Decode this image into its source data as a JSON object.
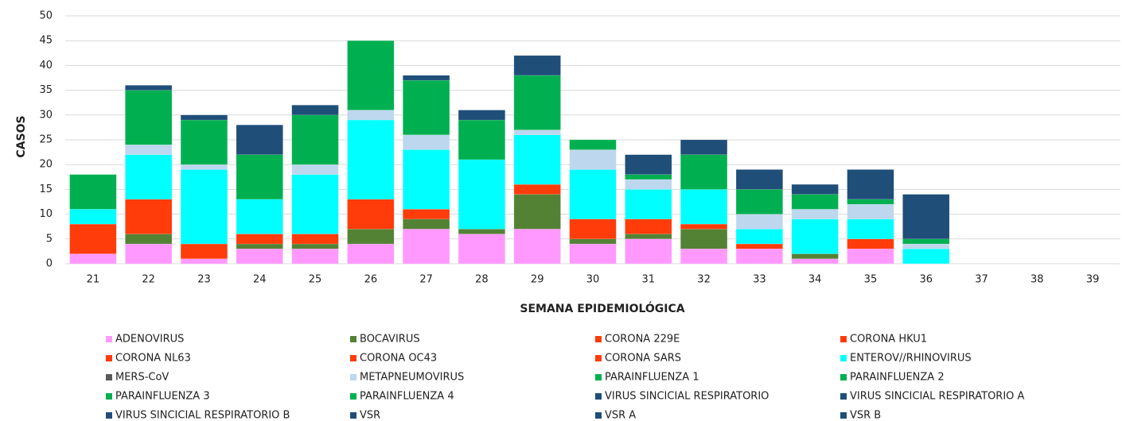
{
  "chart_data": {
    "type": "stacked-bar",
    "x_label": "SEMANA EPIDEMIOLÓGICA",
    "y_label": "CASOS",
    "categories": [
      "21",
      "22",
      "23",
      "24",
      "25",
      "26",
      "27",
      "28",
      "29",
      "30",
      "31",
      "32",
      "33",
      "34",
      "35",
      "36",
      "37",
      "38",
      "39"
    ],
    "ylim": [
      0,
      50
    ],
    "yticks": [
      0,
      5,
      10,
      15,
      20,
      25,
      30,
      35,
      40,
      45,
      50
    ],
    "grid": true,
    "series": [
      {
        "name": "ADENOVIRUS",
        "color": "#ff99ff",
        "values": [
          2,
          4,
          1,
          3,
          3,
          4,
          7,
          6,
          7,
          4,
          5,
          3,
          3,
          1,
          3,
          0,
          0,
          0,
          0
        ]
      },
      {
        "name": "BOCAVIRUS",
        "color": "#548235",
        "values": [
          0,
          2,
          0,
          1,
          1,
          3,
          2,
          1,
          7,
          1,
          1,
          4,
          0,
          1,
          0,
          0,
          0,
          0,
          0
        ]
      },
      {
        "name": "CORONA 229E",
        "color": "#ff3c0a",
        "values": [
          0,
          0,
          0,
          0,
          0,
          0,
          0,
          0,
          0,
          0,
          0,
          0,
          0,
          0,
          0,
          0,
          0,
          0,
          0
        ]
      },
      {
        "name": "CORONA HKU1",
        "color": "#ff3c0a",
        "values": [
          0,
          0,
          0,
          0,
          0,
          0,
          0,
          0,
          0,
          0,
          0,
          0,
          0,
          0,
          0,
          0,
          0,
          0,
          0
        ]
      },
      {
        "name": "CORONA NL63",
        "color": "#ff3c0a",
        "values": [
          0,
          0,
          0,
          0,
          0,
          0,
          0,
          0,
          0,
          0,
          0,
          0,
          0,
          0,
          0,
          0,
          0,
          0,
          0
        ]
      },
      {
        "name": "CORONA OC43",
        "color": "#ff3c0a",
        "values": [
          6,
          7,
          3,
          2,
          2,
          6,
          2,
          0,
          2,
          4,
          3,
          1,
          1,
          0,
          2,
          0,
          0,
          0,
          0
        ]
      },
      {
        "name": "CORONA SARS",
        "color": "#ff3c0a",
        "values": [
          0,
          0,
          0,
          0,
          0,
          0,
          0,
          0,
          0,
          0,
          0,
          0,
          0,
          0,
          0,
          0,
          0,
          0,
          0
        ]
      },
      {
        "name": "ENTEROV//RHINOVIRUS",
        "color": "#00ffff",
        "values": [
          3,
          9,
          15,
          7,
          12,
          16,
          12,
          14,
          10,
          10,
          6,
          7,
          3,
          7,
          4,
          3,
          0,
          0,
          0
        ]
      },
      {
        "name": "MERS-CoV",
        "color": "#595959",
        "values": [
          0,
          0,
          0,
          0,
          0,
          0,
          0,
          0,
          0,
          0,
          0,
          0,
          0,
          0,
          0,
          0,
          0,
          0,
          0
        ]
      },
      {
        "name": "METAPNEUMOVIRUS",
        "color": "#bdd7ee",
        "values": [
          0,
          2,
          1,
          0,
          2,
          2,
          3,
          0,
          1,
          4,
          2,
          0,
          3,
          2,
          3,
          1,
          0,
          0,
          0
        ]
      },
      {
        "name": "PARAINFLUENZA 1",
        "color": "#00b050",
        "values": [
          0,
          0,
          0,
          0,
          0,
          0,
          0,
          0,
          0,
          0,
          0,
          0,
          0,
          0,
          0,
          0,
          0,
          0,
          0
        ]
      },
      {
        "name": "PARAINFLUENZA 2",
        "color": "#00b050",
        "values": [
          0,
          0,
          0,
          0,
          0,
          0,
          0,
          0,
          0,
          0,
          0,
          0,
          0,
          0,
          0,
          0,
          0,
          0,
          0
        ]
      },
      {
        "name": "PARAINFLUENZA 3",
        "color": "#00b050",
        "values": [
          7,
          11,
          9,
          9,
          10,
          14,
          11,
          8,
          11,
          2,
          1,
          7,
          5,
          3,
          1,
          1,
          0,
          0,
          0
        ]
      },
      {
        "name": "PARAINFLUENZA 4",
        "color": "#00b050",
        "values": [
          0,
          0,
          0,
          0,
          0,
          0,
          0,
          0,
          0,
          0,
          0,
          0,
          0,
          0,
          0,
          0,
          0,
          0,
          0
        ]
      },
      {
        "name": "VIRUS SINCICIAL RESPIRATORIO",
        "color": "#1f4e79",
        "values": [
          0,
          0,
          0,
          0,
          0,
          0,
          0,
          0,
          0,
          0,
          0,
          0,
          0,
          0,
          0,
          0,
          0,
          0,
          0
        ]
      },
      {
        "name": "VIRUS SINCICIAL RESPIRATORIO A",
        "color": "#1f4e79",
        "values": [
          0,
          0,
          0,
          0,
          0,
          0,
          0,
          0,
          0,
          0,
          0,
          0,
          0,
          0,
          0,
          0,
          0,
          0,
          0
        ]
      },
      {
        "name": "VIRUS SINCICIAL RESPIRATORIO B",
        "color": "#1f4e79",
        "values": [
          0,
          0,
          0,
          0,
          0,
          0,
          0,
          0,
          0,
          0,
          0,
          0,
          0,
          0,
          0,
          0,
          0,
          0,
          0
        ]
      },
      {
        "name": "VSR",
        "color": "#1f4e79",
        "values": [
          0,
          1,
          1,
          6,
          2,
          0,
          1,
          2,
          4,
          0,
          4,
          3,
          4,
          2,
          6,
          9,
          0,
          0,
          0
        ]
      },
      {
        "name": "VSR A",
        "color": "#1f4e79",
        "values": [
          0,
          0,
          0,
          0,
          0,
          0,
          0,
          0,
          0,
          0,
          0,
          0,
          0,
          0,
          0,
          0,
          0,
          0,
          0
        ]
      },
      {
        "name": "VSR B",
        "color": "#1f4e79",
        "values": [
          0,
          0,
          0,
          0,
          0,
          0,
          0,
          0,
          0,
          0,
          0,
          0,
          0,
          0,
          0,
          0,
          0,
          0,
          0
        ]
      }
    ]
  }
}
